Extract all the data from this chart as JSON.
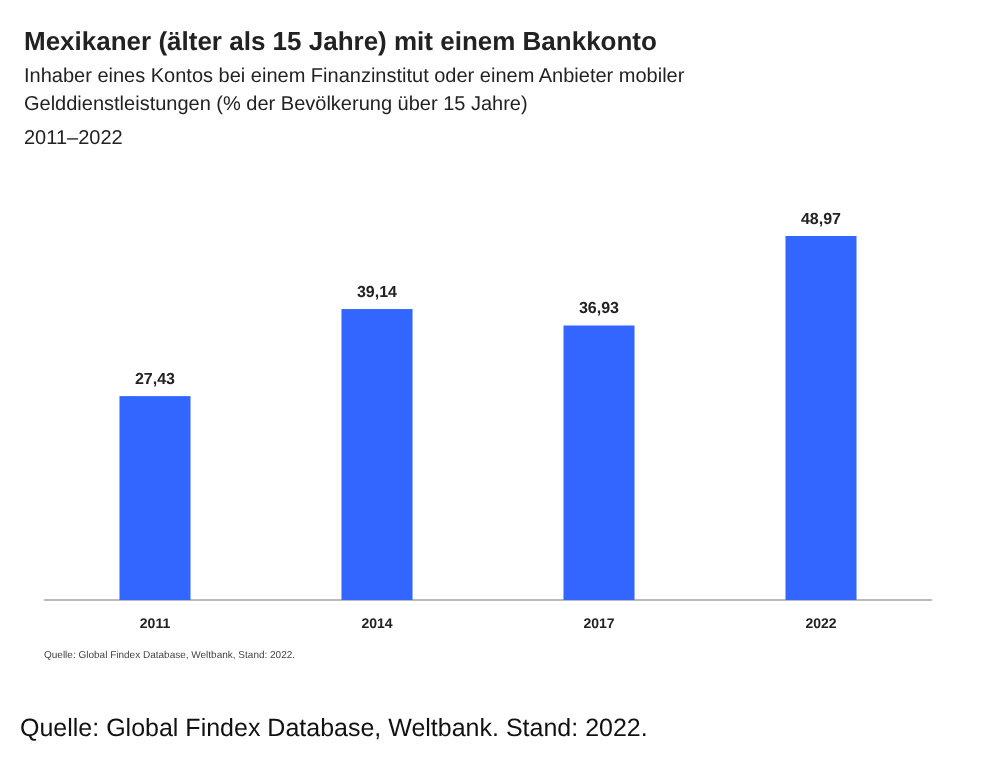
{
  "chart_data": {
    "type": "bar",
    "title": "Mexikaner (älter als 15 Jahre) mit einem Bankkonto",
    "subtitle": "Inhaber eines Kontos bei einem Finanzinstitut oder einem Anbieter mobiler\nGelddienstleistungen (% der Bevölkerung über 15 Jahre)\n2011‒2022",
    "categories": [
      "2011",
      "2014",
      "2017",
      "2022"
    ],
    "values": [
      27.43,
      39.14,
      36.93,
      48.97
    ],
    "color": "#3366ff",
    "value_labels": [
      "27,43",
      "39,14",
      "36,93",
      "48,97"
    ],
    "annotations": [
      "Quelle: Global Findex Database,  Weltbank,  Stand: 2022.",
      "Quelle: Global Findex Database, Weltbank. Stand: 2022."
    ]
  }
}
